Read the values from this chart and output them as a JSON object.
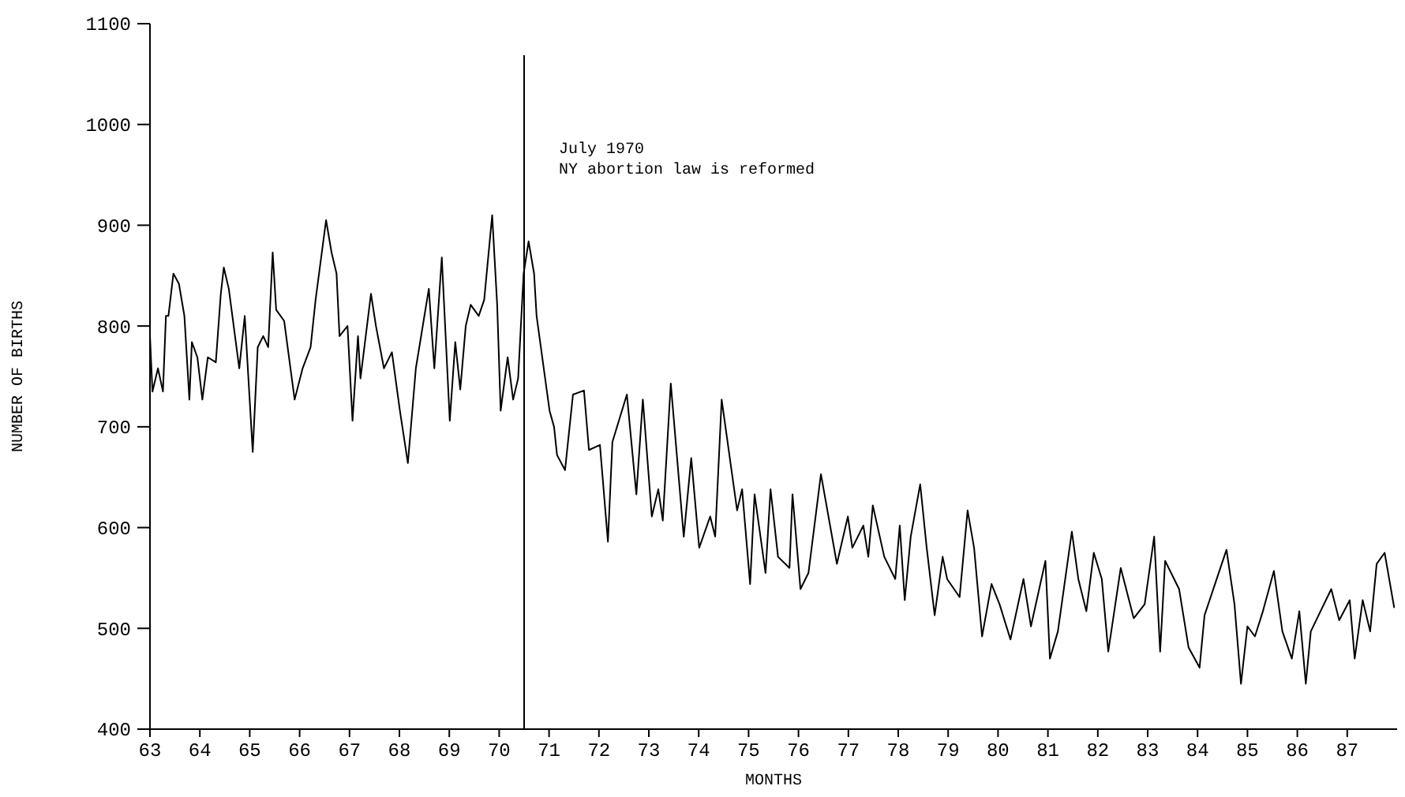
{
  "chart_data": {
    "type": "line",
    "xlabel": "MONTHS",
    "ylabel": "NUMBER OF BIRTHS",
    "xlim": [
      1963,
      1988
    ],
    "ylim": [
      400,
      1100
    ],
    "xticks": [
      {
        "value": 1963,
        "label": "63"
      },
      {
        "value": 1964,
        "label": "64"
      },
      {
        "value": 1965,
        "label": "65"
      },
      {
        "value": 1966,
        "label": "66"
      },
      {
        "value": 1967,
        "label": "67"
      },
      {
        "value": 1968,
        "label": "68"
      },
      {
        "value": 1969,
        "label": "69"
      },
      {
        "value": 1970,
        "label": "70"
      },
      {
        "value": 1971,
        "label": "71"
      },
      {
        "value": 1972,
        "label": "72"
      },
      {
        "value": 1973,
        "label": "73"
      },
      {
        "value": 1974,
        "label": "74"
      },
      {
        "value": 1975,
        "label": "75"
      },
      {
        "value": 1976,
        "label": "76"
      },
      {
        "value": 1977,
        "label": "77"
      },
      {
        "value": 1978,
        "label": "78"
      },
      {
        "value": 1979,
        "label": "79"
      },
      {
        "value": 1980,
        "label": "80"
      },
      {
        "value": 1981,
        "label": "81"
      },
      {
        "value": 1982,
        "label": "82"
      },
      {
        "value": 1983,
        "label": "83"
      },
      {
        "value": 1984,
        "label": "84"
      },
      {
        "value": 1985,
        "label": "85"
      },
      {
        "value": 1986,
        "label": "86"
      },
      {
        "value": 1987,
        "label": "87"
      }
    ],
    "yticks": [
      400,
      500,
      600,
      700,
      800,
      900,
      1000,
      1100
    ],
    "grid": false,
    "marker": "none",
    "line_style": "solid",
    "ref_lines": [
      {
        "axis": "x",
        "value": 1970.5,
        "label": "July 1970\nNY abortion law is reformed",
        "color": "#000000"
      }
    ],
    "series": [
      {
        "color": "#000000",
        "x": [
          1963.0,
          1963.05,
          1963.16,
          1963.26,
          1963.32,
          1963.37,
          1963.47,
          1963.58,
          1963.69,
          1963.79,
          1963.84,
          1963.95,
          1964.05,
          1964.16,
          1964.32,
          1964.42,
          1964.48,
          1964.58,
          1964.79,
          1964.9,
          1965.06,
          1965.16,
          1965.27,
          1965.37,
          1965.46,
          1965.53,
          1965.69,
          1965.9,
          1966.06,
          1966.22,
          1966.32,
          1966.53,
          1966.64,
          1966.74,
          1966.8,
          1966.96,
          1967.06,
          1967.17,
          1967.22,
          1967.43,
          1967.53,
          1967.69,
          1967.85,
          1968.01,
          1968.17,
          1968.33,
          1968.59,
          1968.7,
          1968.85,
          1969.01,
          1969.12,
          1969.22,
          1969.33,
          1969.43,
          1969.59,
          1969.7,
          1969.86,
          1969.96,
          1970.03,
          1970.17,
          1970.28,
          1970.38,
          1970.49,
          1970.59,
          1970.7,
          1970.75,
          1971.01,
          1971.1,
          1971.16,
          1971.32,
          1971.48,
          1971.7,
          1971.8,
          1972.02,
          1972.18,
          1972.27,
          1972.56,
          1972.75,
          1972.88,
          1973.06,
          1973.19,
          1973.28,
          1973.44,
          1973.7,
          1973.85,
          1974.01,
          1974.23,
          1974.33,
          1974.46,
          1974.77,
          1974.87,
          1975.03,
          1975.12,
          1975.34,
          1975.44,
          1975.59,
          1975.82,
          1975.88,
          1976.04,
          1976.2,
          1976.45,
          1976.77,
          1976.99,
          1977.08,
          1977.3,
          1977.4,
          1977.49,
          1977.72,
          1977.94,
          1978.03,
          1978.13,
          1978.25,
          1978.44,
          1978.57,
          1978.73,
          1978.89,
          1978.98,
          1979.23,
          1979.39,
          1979.52,
          1979.68,
          1979.87,
          1980.03,
          1980.25,
          1980.51,
          1980.66,
          1980.95,
          1981.04,
          1981.2,
          1981.48,
          1981.61,
          1981.77,
          1981.92,
          1982.08,
          1982.21,
          1982.46,
          1982.72,
          1982.94,
          1983.13,
          1983.25,
          1983.35,
          1983.63,
          1983.82,
          1984.04,
          1984.14,
          1984.58,
          1984.74,
          1984.87,
          1985.0,
          1985.15,
          1985.31,
          1985.53,
          1985.7,
          1985.89,
          1986.04,
          1986.17,
          1986.27,
          1986.68,
          1986.84,
          1987.05,
          1987.15,
          1987.31,
          1987.46,
          1987.59,
          1987.75,
          1987.94
        ],
        "values": [
          790,
          735,
          758,
          735,
          810,
          810,
          852,
          842,
          810,
          727,
          784,
          769,
          727,
          769,
          764,
          832,
          858,
          837,
          758,
          810,
          675,
          779,
          790,
          779,
          873,
          816,
          805,
          727,
          758,
          779,
          826,
          905,
          873,
          852,
          790,
          800,
          706,
          790,
          748,
          832,
          800,
          758,
          774,
          716,
          664,
          758,
          837,
          758,
          868,
          706,
          784,
          737,
          800,
          821,
          810,
          826,
          910,
          821,
          716,
          769,
          727,
          748,
          852,
          884,
          852,
          810,
          716,
          700,
          672,
          657,
          732,
          736,
          677,
          682,
          586,
          685,
          732,
          633,
          727,
          611,
          638,
          607,
          743,
          591,
          669,
          580,
          611,
          591,
          727,
          617,
          638,
          544,
          633,
          555,
          638,
          571,
          560,
          633,
          539,
          555,
          653,
          564,
          611,
          580,
          602,
          571,
          622,
          571,
          549,
          602,
          528,
          591,
          643,
          580,
          513,
          571,
          549,
          531,
          617,
          580,
          492,
          544,
          524,
          489,
          549,
          502,
          567,
          470,
          497,
          596,
          549,
          517,
          575,
          549,
          477,
          560,
          510,
          524,
          591,
          477,
          567,
          539,
          481,
          461,
          513,
          578,
          524,
          445,
          502,
          492,
          517,
          557,
          497,
          470,
          517,
          445,
          497,
          539,
          508,
          528,
          470,
          528,
          497,
          564,
          575,
          521
        ]
      }
    ]
  }
}
